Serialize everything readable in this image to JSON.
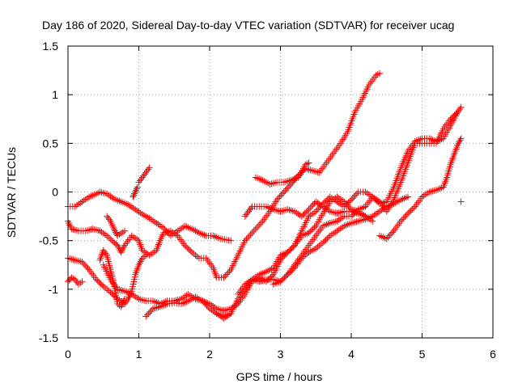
{
  "chart_data": {
    "type": "scatter",
    "title": "Day 186 of 2020, Sidereal Day-to-day VTEC variation (SDTVAR) for receiver ucag",
    "xlabel": "GPS time / hours",
    "ylabel": "SDTVAR / TECUs",
    "xlim": [
      0,
      6
    ],
    "ylim": [
      -1.5,
      1.5
    ],
    "x_ticks": [
      0,
      1,
      2,
      3,
      4,
      5,
      6
    ],
    "x_tick_labels": [
      "0",
      "1",
      "2",
      "3",
      "4",
      "5",
      "6"
    ],
    "y_ticks": [
      -1.5,
      -1,
      -0.5,
      0,
      0.5,
      1,
      1.5
    ],
    "y_tick_labels": [
      "-1.5",
      "-1",
      "-0.5",
      "0",
      "0.5",
      "1",
      "1.5"
    ],
    "grid": true,
    "marker": "+",
    "marker_color": "#ff0000",
    "series": [
      {
        "points": [
          [
            0.0,
            -0.15
          ],
          [
            0.1,
            -0.15
          ],
          [
            0.2,
            -0.1
          ],
          [
            0.3,
            -0.05
          ],
          [
            0.4,
            -0.02
          ],
          [
            0.45,
            0.0
          ],
          [
            0.55,
            -0.02
          ],
          [
            0.65,
            -0.07
          ],
          [
            0.75,
            -0.1
          ],
          [
            0.85,
            -0.13
          ],
          [
            0.95,
            -0.18
          ],
          [
            1.05,
            -0.23
          ],
          [
            1.15,
            -0.27
          ],
          [
            1.25,
            -0.32
          ],
          [
            1.35,
            -0.37
          ],
          [
            1.45,
            -0.45
          ],
          [
            1.55,
            -0.4
          ],
          [
            1.65,
            -0.35
          ],
          [
            1.75,
            -0.38
          ],
          [
            1.85,
            -0.42
          ],
          [
            1.95,
            -0.45
          ],
          [
            2.05,
            -0.45
          ],
          [
            2.15,
            -0.48
          ],
          [
            2.3,
            -0.5
          ]
        ]
      },
      {
        "points": [
          [
            0.0,
            -0.3
          ],
          [
            0.05,
            -0.38
          ],
          [
            0.15,
            -0.4
          ],
          [
            0.25,
            -0.4
          ],
          [
            0.35,
            -0.38
          ],
          [
            0.45,
            -0.4
          ],
          [
            0.55,
            -0.45
          ],
          [
            0.62,
            -0.5
          ],
          [
            0.7,
            -0.55
          ],
          [
            0.75,
            -0.62
          ],
          [
            0.8,
            -0.55
          ],
          [
            0.9,
            -0.45
          ],
          [
            1.0,
            -0.5
          ],
          [
            1.05,
            -0.6
          ],
          [
            1.15,
            -0.65
          ],
          [
            1.25,
            -0.6
          ],
          [
            1.3,
            -0.5
          ],
          [
            1.35,
            -0.42
          ],
          [
            1.45,
            -0.4
          ],
          [
            1.55,
            -0.45
          ],
          [
            1.65,
            -0.55
          ],
          [
            1.75,
            -0.62
          ],
          [
            1.85,
            -0.68
          ],
          [
            1.95,
            -0.68
          ],
          [
            2.05,
            -0.78
          ],
          [
            2.1,
            -0.88
          ],
          [
            2.2,
            -0.88
          ],
          [
            2.3,
            -0.8
          ],
          [
            2.4,
            -0.65
          ],
          [
            2.5,
            -0.5
          ],
          [
            2.6,
            -0.42
          ],
          [
            2.75,
            -0.3
          ],
          [
            2.85,
            -0.2
          ],
          [
            2.95,
            -0.08
          ],
          [
            3.05,
            0.0
          ],
          [
            3.15,
            0.08
          ],
          [
            3.25,
            0.17
          ],
          [
            3.35,
            0.24
          ],
          [
            3.45,
            0.22
          ],
          [
            3.55,
            0.2
          ],
          [
            3.65,
            0.3
          ],
          [
            3.75,
            0.4
          ],
          [
            3.85,
            0.5
          ],
          [
            3.95,
            0.62
          ],
          [
            4.05,
            0.82
          ],
          [
            4.15,
            0.95
          ],
          [
            4.25,
            1.1
          ],
          [
            4.35,
            1.2
          ],
          [
            4.4,
            1.22
          ]
        ]
      },
      {
        "points": [
          [
            0.0,
            -0.68
          ],
          [
            0.1,
            -0.7
          ],
          [
            0.2,
            -0.72
          ],
          [
            0.3,
            -0.8
          ],
          [
            0.4,
            -0.9
          ],
          [
            0.5,
            -0.97
          ],
          [
            0.6,
            -1.03
          ],
          [
            0.7,
            -1.1
          ],
          [
            0.8,
            -1.15
          ],
          [
            0.85,
            -1.1
          ],
          [
            0.9,
            -1.02
          ],
          [
            0.95,
            -0.85
          ],
          [
            1.0,
            -0.75
          ],
          [
            1.05,
            -0.68
          ],
          [
            1.1,
            -0.65
          ]
        ]
      },
      {
        "points": [
          [
            0.0,
            -0.92
          ],
          [
            0.05,
            -0.88
          ],
          [
            0.1,
            -0.9
          ],
          [
            0.15,
            -0.95
          ],
          [
            0.2,
            -0.92
          ]
        ]
      },
      {
        "points": [
          [
            0.45,
            -0.7
          ],
          [
            0.5,
            -0.6
          ],
          [
            0.55,
            -0.65
          ],
          [
            0.6,
            -0.8
          ],
          [
            0.65,
            -0.95
          ],
          [
            0.7,
            -1.15
          ],
          [
            0.75,
            -1.18
          ],
          [
            0.8,
            -1.1
          ]
        ]
      },
      {
        "points": [
          [
            0.55,
            -0.25
          ],
          [
            0.6,
            -0.3
          ],
          [
            0.65,
            -0.38
          ],
          [
            0.7,
            -0.45
          ],
          [
            0.8,
            -0.4
          ]
        ]
      },
      {
        "points": [
          [
            0.92,
            -0.05
          ],
          [
            0.95,
            0.0
          ],
          [
            0.98,
            0.05
          ]
        ]
      },
      {
        "points": [
          [
            1.0,
            0.1
          ],
          [
            1.05,
            0.15
          ],
          [
            1.1,
            0.2
          ],
          [
            1.15,
            0.25
          ]
        ]
      },
      {
        "points": [
          [
            1.1,
            -1.28
          ],
          [
            1.2,
            -1.2
          ],
          [
            1.3,
            -1.18
          ],
          [
            1.4,
            -1.15
          ],
          [
            1.5,
            -1.14
          ],
          [
            1.6,
            -1.15
          ],
          [
            1.7,
            -1.12
          ],
          [
            1.8,
            -1.08
          ],
          [
            1.9,
            -1.12
          ],
          [
            2.0,
            -1.15
          ],
          [
            2.1,
            -1.2
          ],
          [
            2.2,
            -1.22
          ],
          [
            2.3,
            -1.2
          ],
          [
            2.4,
            -1.15
          ],
          [
            2.5,
            -1.05
          ],
          [
            2.6,
            -0.92
          ],
          [
            2.7,
            -0.88
          ],
          [
            2.8,
            -0.92
          ],
          [
            2.9,
            -0.85
          ],
          [
            3.0,
            -0.7
          ],
          [
            3.1,
            -0.62
          ],
          [
            3.2,
            -0.55
          ],
          [
            3.3,
            -0.4
          ],
          [
            3.4,
            -0.25
          ],
          [
            3.5,
            -0.2
          ],
          [
            3.6,
            -0.12
          ],
          [
            3.7,
            -0.05
          ],
          [
            3.8,
            -0.1
          ],
          [
            3.9,
            -0.15
          ],
          [
            4.0,
            -0.08
          ],
          [
            4.1,
            0.0
          ],
          [
            4.2,
            0.0
          ],
          [
            4.3,
            -0.05
          ],
          [
            4.4,
            -0.12
          ],
          [
            4.5,
            -0.1
          ],
          [
            4.6,
            0.05
          ],
          [
            4.7,
            0.25
          ],
          [
            4.8,
            0.42
          ],
          [
            4.9,
            0.52
          ],
          [
            5.0,
            0.55
          ],
          [
            5.1,
            0.55
          ],
          [
            5.2,
            0.52
          ],
          [
            5.3,
            0.55
          ],
          [
            5.4,
            0.68
          ],
          [
            5.5,
            0.82
          ],
          [
            5.55,
            0.87
          ]
        ]
      },
      {
        "points": [
          [
            2.1,
            -1.25
          ],
          [
            2.2,
            -1.3
          ],
          [
            2.3,
            -1.25
          ],
          [
            2.4,
            -1.1
          ],
          [
            2.5,
            -1.0
          ],
          [
            2.6,
            -0.9
          ],
          [
            2.7,
            -0.92
          ],
          [
            2.8,
            -0.9
          ],
          [
            2.9,
            -0.9
          ],
          [
            3.0,
            -0.92
          ],
          [
            3.1,
            -0.85
          ],
          [
            3.2,
            -0.75
          ],
          [
            3.3,
            -0.65
          ],
          [
            3.4,
            -0.55
          ],
          [
            3.5,
            -0.45
          ],
          [
            3.6,
            -0.35
          ],
          [
            3.7,
            -0.32
          ],
          [
            3.8,
            -0.3
          ],
          [
            3.9,
            -0.25
          ],
          [
            4.0,
            -0.25
          ],
          [
            4.1,
            -0.18
          ],
          [
            4.2,
            -0.15
          ],
          [
            4.3,
            -0.05
          ],
          [
            4.4,
            -0.1
          ],
          [
            4.5,
            -0.2
          ],
          [
            4.6,
            -0.08
          ],
          [
            4.7,
            0.1
          ],
          [
            4.8,
            0.3
          ],
          [
            4.9,
            0.5
          ],
          [
            5.0,
            0.5
          ],
          [
            5.1,
            0.5
          ],
          [
            5.2,
            0.5
          ],
          [
            5.3,
            0.65
          ],
          [
            5.4,
            0.75
          ],
          [
            5.5,
            0.82
          ]
        ]
      },
      {
        "points": [
          [
            0.5,
            -0.75
          ],
          [
            0.6,
            -0.9
          ],
          [
            0.7,
            -1.0
          ],
          [
            0.8,
            -1.02
          ],
          [
            0.9,
            -1.05
          ],
          [
            1.0,
            -1.1
          ],
          [
            1.1,
            -1.12
          ],
          [
            1.2,
            -1.12
          ],
          [
            1.3,
            -1.15
          ],
          [
            1.4,
            -1.12
          ],
          [
            1.5,
            -1.12
          ],
          [
            1.6,
            -1.1
          ],
          [
            1.7,
            -1.05
          ],
          [
            1.8,
            -1.1
          ],
          [
            1.9,
            -1.12
          ],
          [
            2.0,
            -1.2
          ],
          [
            2.1,
            -1.25
          ],
          [
            2.2,
            -1.28
          ],
          [
            2.3,
            -1.25
          ]
        ]
      },
      {
        "points": [
          [
            2.4,
            -1.05
          ],
          [
            2.5,
            -0.95
          ],
          [
            2.6,
            -0.9
          ],
          [
            2.7,
            -0.85
          ],
          [
            2.8,
            -0.82
          ],
          [
            2.9,
            -0.78
          ],
          [
            3.0,
            -0.65
          ],
          [
            3.1,
            -0.62
          ],
          [
            3.2,
            -0.55
          ],
          [
            3.3,
            -0.45
          ],
          [
            3.4,
            -0.42
          ],
          [
            3.5,
            -0.35
          ],
          [
            3.6,
            -0.22
          ],
          [
            3.7,
            -0.1
          ],
          [
            3.8,
            -0.05
          ],
          [
            3.9,
            -0.1
          ],
          [
            4.0,
            -0.18
          ],
          [
            4.1,
            -0.2
          ],
          [
            4.2,
            -0.25
          ],
          [
            4.3,
            -0.3
          ]
        ]
      },
      {
        "points": [
          [
            2.5,
            -0.25
          ],
          [
            2.55,
            -0.2
          ],
          [
            2.6,
            -0.15
          ],
          [
            2.7,
            -0.15
          ],
          [
            2.8,
            -0.15
          ],
          [
            2.9,
            -0.18
          ],
          [
            3.0,
            -0.2
          ],
          [
            3.1,
            -0.18
          ],
          [
            3.2,
            -0.2
          ],
          [
            3.3,
            -0.25
          ],
          [
            3.4,
            -0.18
          ],
          [
            3.5,
            -0.1
          ],
          [
            3.6,
            -0.15
          ],
          [
            3.7,
            -0.2
          ],
          [
            3.8,
            -0.22
          ],
          [
            3.9,
            -0.2
          ],
          [
            4.0,
            -0.2
          ],
          [
            4.1,
            -0.22
          ],
          [
            4.2,
            -0.25
          ]
        ]
      },
      {
        "points": [
          [
            2.65,
            0.15
          ],
          [
            2.75,
            0.12
          ],
          [
            2.85,
            0.08
          ],
          [
            2.95,
            0.1
          ],
          [
            3.05,
            0.1
          ],
          [
            3.15,
            0.12
          ],
          [
            3.25,
            0.15
          ],
          [
            3.3,
            0.2
          ],
          [
            3.35,
            0.28
          ],
          [
            3.4,
            0.3
          ]
        ]
      },
      {
        "points": [
          [
            2.9,
            -0.95
          ],
          [
            3.0,
            -0.92
          ],
          [
            3.1,
            -0.85
          ],
          [
            3.2,
            -0.78
          ],
          [
            3.3,
            -0.68
          ],
          [
            3.4,
            -0.62
          ],
          [
            3.5,
            -0.58
          ],
          [
            3.6,
            -0.52
          ],
          [
            3.7,
            -0.45
          ],
          [
            3.8,
            -0.4
          ],
          [
            3.9,
            -0.35
          ],
          [
            4.0,
            -0.32
          ],
          [
            4.1,
            -0.3
          ],
          [
            4.2,
            -0.28
          ],
          [
            4.3,
            -0.25
          ],
          [
            4.4,
            -0.2
          ],
          [
            4.5,
            -0.15
          ],
          [
            4.6,
            -0.12
          ],
          [
            4.7,
            -0.08
          ],
          [
            4.8,
            -0.05
          ]
        ]
      },
      {
        "points": [
          [
            4.4,
            -0.45
          ],
          [
            4.5,
            -0.48
          ],
          [
            4.6,
            -0.4
          ],
          [
            4.7,
            -0.3
          ],
          [
            4.8,
            -0.22
          ],
          [
            4.9,
            -0.15
          ],
          [
            5.0,
            -0.05
          ],
          [
            5.1,
            0.0
          ],
          [
            5.2,
            0.02
          ],
          [
            5.3,
            0.05
          ],
          [
            5.35,
            0.15
          ],
          [
            5.4,
            0.28
          ],
          [
            5.45,
            0.38
          ],
          [
            5.5,
            0.48
          ],
          [
            5.55,
            0.55
          ]
        ]
      },
      {
        "points": [
          [
            5.55,
            -0.1
          ]
        ]
      }
    ]
  }
}
